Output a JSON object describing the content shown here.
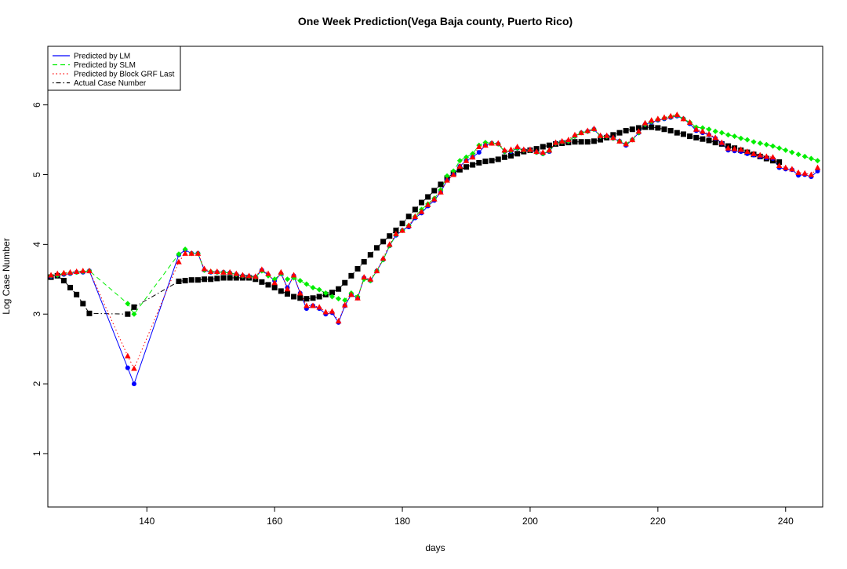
{
  "chart_data": {
    "type": "line",
    "title": "One Week Prediction(Vega Baja county, Puerto Rico)",
    "xlabel": "days",
    "ylabel": "Log Case Number",
    "xlim": [
      124.5,
      245.8
    ],
    "ylim": [
      0.234,
      6.84
    ],
    "xticks": [
      140,
      160,
      180,
      200,
      220,
      240
    ],
    "yticks": [
      1,
      2,
      3,
      4,
      5,
      6
    ],
    "legend": "top-left",
    "x": [
      124,
      125,
      126,
      127,
      128,
      129,
      130,
      131,
      137,
      138,
      145,
      146,
      147,
      148,
      149,
      150,
      151,
      152,
      153,
      154,
      155,
      156,
      157,
      158,
      159,
      160,
      161,
      162,
      163,
      164,
      165,
      166,
      167,
      168,
      169,
      170,
      171,
      172,
      173,
      174,
      175,
      176,
      177,
      178,
      179,
      180,
      181,
      182,
      183,
      184,
      185,
      186,
      187,
      188,
      189,
      190,
      191,
      192,
      193,
      194,
      195,
      196,
      197,
      198,
      199,
      200,
      201,
      202,
      203,
      204,
      205,
      206,
      207,
      208,
      209,
      210,
      211,
      212,
      213,
      214,
      215,
      216,
      217,
      218,
      219,
      220,
      221,
      222,
      223,
      224,
      225,
      226,
      227,
      228,
      229,
      230,
      231,
      232,
      233,
      234,
      235,
      236,
      237,
      238,
      239,
      240,
      241,
      242,
      243,
      244,
      245
    ],
    "series": [
      {
        "name": "Actual Case Number",
        "color": "#000000",
        "line_style": "dotdash",
        "marker": "square",
        "values": [
          3.52,
          3.53,
          3.55,
          3.48,
          3.38,
          3.28,
          3.15,
          3.01,
          3.0,
          3.1,
          3.47,
          3.48,
          3.49,
          3.49,
          3.5,
          3.5,
          3.51,
          3.52,
          3.52,
          3.52,
          3.52,
          3.52,
          3.5,
          3.46,
          3.42,
          3.38,
          3.33,
          3.29,
          3.25,
          3.23,
          3.22,
          3.23,
          3.25,
          3.28,
          3.31,
          3.36,
          3.45,
          3.55,
          3.65,
          3.75,
          3.85,
          3.95,
          4.04,
          4.12,
          4.2,
          4.3,
          4.4,
          4.5,
          4.6,
          4.68,
          4.77,
          4.86,
          4.95,
          5.02,
          5.07,
          5.11,
          5.14,
          5.17,
          5.19,
          5.2,
          5.22,
          5.25,
          5.27,
          5.3,
          5.33,
          5.35,
          5.37,
          5.4,
          5.42,
          5.44,
          5.45,
          5.46,
          5.47,
          5.47,
          5.47,
          5.48,
          5.5,
          5.53,
          5.57,
          5.6,
          5.63,
          5.65,
          5.67,
          5.68,
          5.68,
          5.67,
          5.65,
          5.63,
          5.6,
          5.58,
          5.55,
          5.53,
          5.51,
          5.49,
          5.46,
          5.44,
          5.41,
          5.38,
          5.35,
          5.32,
          5.29,
          5.26,
          5.23,
          5.2,
          5.18,
          null,
          null,
          null,
          null,
          null,
          null
        ]
      },
      {
        "name": "Predicted by LM",
        "color": "#0000ff",
        "line_style": "solid",
        "marker": "circle",
        "values": [
          3.52,
          3.54,
          3.56,
          3.57,
          3.58,
          3.6,
          3.6,
          3.62,
          2.23,
          2.0,
          3.85,
          3.92,
          3.87,
          3.87,
          3.63,
          3.6,
          3.6,
          3.6,
          3.59,
          3.57,
          3.55,
          3.54,
          3.53,
          3.63,
          3.56,
          3.48,
          3.58,
          3.38,
          3.55,
          3.3,
          3.08,
          3.12,
          3.08,
          3.0,
          3.02,
          2.88,
          3.12,
          3.28,
          3.23,
          3.52,
          3.48,
          3.62,
          3.78,
          3.98,
          4.13,
          4.2,
          4.25,
          4.38,
          4.45,
          4.55,
          4.63,
          4.75,
          4.92,
          5.0,
          5.12,
          5.2,
          5.25,
          5.32,
          5.42,
          5.45,
          5.44,
          5.33,
          5.33,
          5.38,
          5.35,
          5.35,
          5.32,
          5.3,
          5.33,
          5.45,
          5.47,
          5.48,
          5.55,
          5.6,
          5.62,
          5.65,
          5.55,
          5.55,
          5.52,
          5.48,
          5.42,
          5.5,
          5.6,
          5.72,
          5.75,
          5.78,
          5.8,
          5.82,
          5.84,
          5.8,
          5.73,
          5.63,
          5.6,
          5.57,
          5.52,
          5.45,
          5.35,
          5.34,
          5.33,
          5.3,
          5.28,
          5.26,
          5.24,
          5.23,
          5.1,
          5.08,
          5.07,
          4.99,
          5.0,
          4.97,
          5.05
        ]
      },
      {
        "name": "Predicted by SLM",
        "color": "#00ee00",
        "line_style": "dashed",
        "marker": "diamond",
        "values": [
          3.53,
          3.55,
          3.56,
          3.58,
          3.59,
          3.6,
          3.61,
          3.62,
          3.15,
          3.0,
          3.86,
          3.93,
          3.87,
          3.87,
          3.63,
          3.61,
          3.6,
          3.6,
          3.59,
          3.57,
          3.55,
          3.54,
          3.53,
          3.62,
          3.55,
          3.5,
          3.58,
          3.5,
          3.52,
          3.48,
          3.43,
          3.38,
          3.35,
          3.3,
          3.25,
          3.22,
          3.2,
          3.3,
          3.25,
          3.5,
          3.48,
          3.62,
          3.78,
          3.98,
          4.14,
          4.2,
          4.27,
          4.4,
          4.5,
          4.58,
          4.66,
          4.78,
          4.98,
          5.05,
          5.2,
          5.25,
          5.3,
          5.42,
          5.46,
          5.45,
          5.44,
          5.33,
          5.34,
          5.38,
          5.35,
          5.35,
          5.32,
          5.3,
          5.34,
          5.45,
          5.47,
          5.48,
          5.55,
          5.6,
          5.62,
          5.65,
          5.55,
          5.55,
          5.52,
          5.48,
          5.44,
          5.5,
          5.6,
          5.72,
          5.76,
          5.79,
          5.81,
          5.83,
          5.85,
          5.8,
          5.75,
          5.68,
          5.67,
          5.65,
          5.62,
          5.6,
          5.57,
          5.55,
          5.52,
          5.5,
          5.47,
          5.45,
          5.43,
          5.41,
          5.38,
          5.35,
          5.32,
          5.29,
          5.26,
          5.23,
          5.2
        ]
      },
      {
        "name": "Predicted by Block GRF Last",
        "color": "#ff0000",
        "line_style": "dotted",
        "marker": "triangle",
        "values": [
          3.55,
          3.56,
          3.58,
          3.59,
          3.6,
          3.61,
          3.62,
          3.62,
          2.4,
          2.22,
          3.75,
          3.87,
          3.87,
          3.87,
          3.65,
          3.61,
          3.61,
          3.6,
          3.6,
          3.58,
          3.56,
          3.55,
          3.54,
          3.64,
          3.58,
          3.45,
          3.6,
          3.36,
          3.56,
          3.3,
          3.12,
          3.12,
          3.1,
          3.03,
          3.04,
          2.9,
          3.13,
          3.28,
          3.23,
          3.53,
          3.5,
          3.62,
          3.8,
          4.0,
          4.15,
          4.2,
          4.27,
          4.4,
          4.47,
          4.57,
          4.65,
          4.75,
          4.92,
          5.0,
          5.12,
          5.2,
          5.25,
          5.4,
          5.42,
          5.45,
          5.45,
          5.35,
          5.36,
          5.4,
          5.36,
          5.36,
          5.33,
          5.32,
          5.35,
          5.46,
          5.48,
          5.5,
          5.57,
          5.6,
          5.63,
          5.66,
          5.56,
          5.56,
          5.53,
          5.48,
          5.44,
          5.5,
          5.62,
          5.74,
          5.78,
          5.8,
          5.82,
          5.84,
          5.86,
          5.8,
          5.75,
          5.65,
          5.62,
          5.58,
          5.53,
          5.46,
          5.38,
          5.37,
          5.36,
          5.33,
          5.3,
          5.28,
          5.26,
          5.25,
          5.13,
          5.1,
          5.08,
          5.03,
          5.02,
          5.0,
          5.1
        ]
      }
    ]
  }
}
